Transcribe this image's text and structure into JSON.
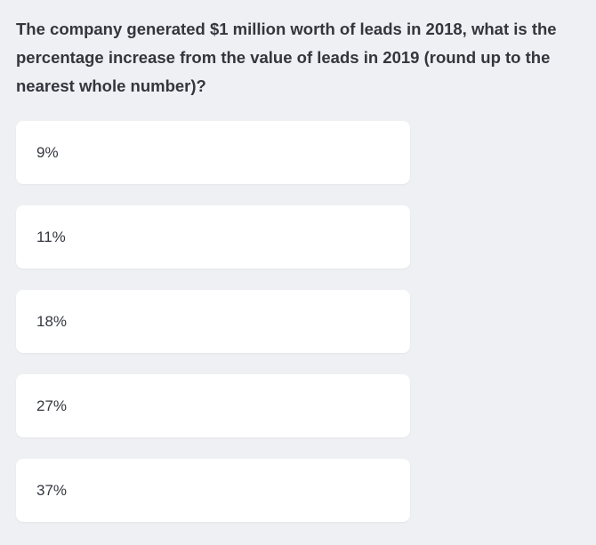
{
  "question": {
    "text": "The company generated $1 million worth of leads in 2018, what is the percentage increase from the value of leads in 2019 (round up to the nearest whole number)?"
  },
  "options": [
    {
      "label": "9%"
    },
    {
      "label": "11%"
    },
    {
      "label": "18%"
    },
    {
      "label": "27%"
    },
    {
      "label": "37%"
    }
  ],
  "colors": {
    "background": "#eff0f3",
    "card": "#ffffff",
    "text": "#33363d"
  }
}
